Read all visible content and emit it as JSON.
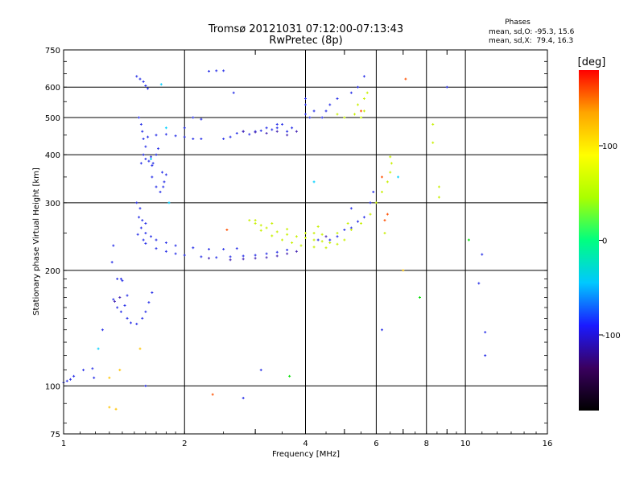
{
  "chart_data": {
    "type": "scatter",
    "title": "Tromsø 20121031 07:12:00-07:13:43",
    "subtitle": "RwPretec (8p)",
    "xlabel": "Frequency [MHz]",
    "ylabel": "Stationary phase Virtual Height [km]",
    "x_scale": "log",
    "y_scale": "log",
    "xlim": [
      1,
      16
    ],
    "ylim": [
      75,
      750
    ],
    "x_ticks": [
      1,
      2,
      4,
      6,
      8,
      10,
      16
    ],
    "x_minor_ticks": [
      3,
      5,
      7,
      9
    ],
    "y_ticks": [
      75,
      100,
      200,
      300,
      400,
      500,
      600,
      750
    ],
    "grid": true,
    "legend": {
      "header": "Phases",
      "lines": [
        "mean, sd,O: -95.3, 15.6",
        "mean, sd,X:  79.4, 16.3"
      ]
    },
    "colorbar": {
      "label": "[deg]",
      "range": [
        -180,
        180
      ],
      "ticks": [
        100,
        0,
        -100
      ],
      "colors": [
        "#000000",
        "#3a005f",
        "#1a1aff",
        "#00c8ff",
        "#00ff80",
        "#aaff00",
        "#ffff00",
        "#ffa500",
        "#ff0000"
      ]
    },
    "series": [
      {
        "color": "#2a32e8",
        "phase": -100,
        "points": [
          [
            1.0,
            102
          ],
          [
            1.02,
            103
          ],
          [
            1.04,
            104
          ],
          [
            1.06,
            106
          ],
          [
            1.12,
            110
          ],
          [
            1.19,
            105
          ],
          [
            1.33,
            232
          ],
          [
            1.32,
            210
          ],
          [
            1.36,
            190
          ],
          [
            1.39,
            190
          ],
          [
            1.4,
            188
          ],
          [
            1.33,
            168
          ],
          [
            1.36,
            160
          ],
          [
            1.39,
            156
          ],
          [
            1.42,
            162
          ],
          [
            1.44,
            172
          ],
          [
            1.44,
            150
          ],
          [
            1.47,
            146
          ],
          [
            1.52,
            145
          ],
          [
            1.57,
            150
          ],
          [
            1.6,
            156
          ],
          [
            1.63,
            165
          ],
          [
            1.66,
            175
          ],
          [
            1.52,
            640
          ],
          [
            1.55,
            630
          ],
          [
            1.58,
            620
          ],
          [
            1.6,
            605
          ],
          [
            1.62,
            595
          ],
          [
            1.54,
            500
          ],
          [
            1.56,
            480
          ],
          [
            1.57,
            460
          ],
          [
            1.58,
            440
          ],
          [
            1.6,
            420
          ],
          [
            1.58,
            400
          ],
          [
            1.56,
            380
          ],
          [
            1.6,
            390
          ],
          [
            1.63,
            385
          ],
          [
            1.66,
            375
          ],
          [
            1.65,
            395
          ],
          [
            1.67,
            380
          ],
          [
            1.7,
            400
          ],
          [
            1.72,
            415
          ],
          [
            1.66,
            350
          ],
          [
            1.7,
            330
          ],
          [
            1.74,
            320
          ],
          [
            1.77,
            330
          ],
          [
            1.8,
            355
          ],
          [
            1.78,
            340
          ],
          [
            1.76,
            360
          ],
          [
            1.52,
            300
          ],
          [
            1.55,
            290
          ],
          [
            1.54,
            275
          ],
          [
            1.57,
            270
          ],
          [
            1.6,
            265
          ],
          [
            1.56,
            258
          ],
          [
            1.53,
            248
          ],
          [
            1.58,
            240
          ],
          [
            1.6,
            235
          ],
          [
            1.7,
            228
          ],
          [
            1.8,
            224
          ],
          [
            1.9,
            221
          ],
          [
            2.0,
            219
          ],
          [
            2.2,
            217
          ],
          [
            2.4,
            216
          ],
          [
            2.6,
            217
          ],
          [
            2.8,
            218
          ],
          [
            3.0,
            219
          ],
          [
            3.2,
            221
          ],
          [
            3.4,
            223
          ],
          [
            3.6,
            226
          ],
          [
            1.7,
            240
          ],
          [
            1.8,
            236
          ],
          [
            1.9,
            232
          ],
          [
            2.1,
            229
          ],
          [
            2.3,
            227
          ],
          [
            2.5,
            227
          ],
          [
            2.7,
            228
          ],
          [
            1.6,
            250
          ],
          [
            1.65,
            245
          ],
          [
            1.62,
            445
          ],
          [
            1.7,
            450
          ],
          [
            1.8,
            452
          ],
          [
            1.9,
            448
          ],
          [
            2.0,
            445
          ],
          [
            2.1,
            440
          ],
          [
            2.2,
            440
          ],
          [
            2.0,
            470
          ],
          [
            2.1,
            500
          ],
          [
            2.2,
            495
          ],
          [
            2.5,
            440
          ],
          [
            2.6,
            445
          ],
          [
            2.7,
            455
          ],
          [
            2.8,
            460
          ],
          [
            2.9,
            452
          ],
          [
            3.0,
            460
          ],
          [
            3.1,
            462
          ],
          [
            3.2,
            470
          ],
          [
            3.3,
            465
          ],
          [
            3.4,
            470
          ],
          [
            3.5,
            480
          ],
          [
            3.6,
            460
          ],
          [
            3.7,
            470
          ],
          [
            3.4,
            480
          ],
          [
            4.0,
            510
          ],
          [
            4.1,
            500
          ],
          [
            4.2,
            520
          ],
          [
            4.4,
            500
          ],
          [
            4.5,
            520
          ],
          [
            4.6,
            540
          ],
          [
            4.8,
            560
          ],
          [
            4.0,
            560
          ],
          [
            4.0,
            540
          ],
          [
            5.2,
            580
          ],
          [
            5.4,
            600
          ],
          [
            5.6,
            640
          ],
          [
            4.6,
            240
          ],
          [
            4.8,
            245
          ],
          [
            5.0,
            255
          ],
          [
            5.2,
            258
          ],
          [
            5.4,
            268
          ],
          [
            5.6,
            275
          ],
          [
            5.8,
            300
          ],
          [
            5.9,
            320
          ],
          [
            5.2,
            290
          ],
          [
            4.3,
            240
          ],
          [
            2.3,
            660
          ],
          [
            2.4,
            662
          ],
          [
            2.5,
            662
          ],
          [
            2.65,
            580
          ],
          [
            1.25,
            140
          ],
          [
            1.6,
            100
          ],
          [
            1.18,
            111
          ],
          [
            2.8,
            93
          ],
          [
            3.1,
            110
          ],
          [
            6.2,
            140
          ],
          [
            11.0,
            220
          ],
          [
            11.2,
            138
          ],
          [
            10.8,
            185
          ],
          [
            11.2,
            120
          ],
          [
            9.0,
            600
          ]
        ]
      },
      {
        "color": "#4a2ab5",
        "phase": -115,
        "points": [
          [
            2.6,
            213
          ],
          [
            2.8,
            214
          ],
          [
            3.0,
            215
          ],
          [
            3.2,
            216
          ],
          [
            3.4,
            218
          ],
          [
            3.6,
            221
          ],
          [
            3.8,
            224
          ],
          [
            2.8,
            460
          ],
          [
            3.0,
            458
          ],
          [
            3.2,
            455
          ],
          [
            3.4,
            460
          ],
          [
            3.6,
            450
          ],
          [
            3.8,
            460
          ],
          [
            1.34,
            166
          ],
          [
            1.38,
            170
          ],
          [
            4.5,
            245
          ],
          [
            2.3,
            215
          ]
        ]
      },
      {
        "color": "#c8f000",
        "phase": 105,
        "points": [
          [
            2.9,
            270
          ],
          [
            3.0,
            265
          ],
          [
            3.1,
            262
          ],
          [
            3.2,
            258
          ],
          [
            3.4,
            252
          ],
          [
            3.6,
            248
          ],
          [
            3.8,
            245
          ],
          [
            4.0,
            243
          ],
          [
            4.2,
            240
          ],
          [
            4.4,
            238
          ],
          [
            4.6,
            236
          ],
          [
            4.8,
            234
          ],
          [
            3.1,
            254
          ],
          [
            3.3,
            246
          ],
          [
            3.5,
            240
          ],
          [
            3.7,
            236
          ],
          [
            3.9,
            232
          ],
          [
            4.2,
            230
          ],
          [
            4.5,
            229
          ],
          [
            3.0,
            270
          ],
          [
            3.3,
            265
          ],
          [
            3.6,
            256
          ],
          [
            4.0,
            250
          ],
          [
            4.4,
            248
          ],
          [
            4.8,
            250
          ],
          [
            5.2,
            255
          ],
          [
            5.5,
            265
          ],
          [
            5.8,
            280
          ],
          [
            6.0,
            300
          ],
          [
            6.2,
            320
          ],
          [
            6.4,
            340
          ],
          [
            6.5,
            360
          ],
          [
            6.55,
            380
          ],
          [
            6.5,
            395
          ],
          [
            5.5,
            500
          ],
          [
            5.6,
            520
          ],
          [
            5.4,
            540
          ],
          [
            5.3,
            510
          ],
          [
            5.7,
            580
          ],
          [
            5.6,
            560
          ],
          [
            5.0,
            500
          ],
          [
            4.8,
            510
          ],
          [
            4.2,
            250
          ],
          [
            4.3,
            260
          ],
          [
            5.0,
            240
          ],
          [
            5.1,
            265
          ],
          [
            6.3,
            250
          ],
          [
            8.3,
            480
          ],
          [
            8.3,
            430
          ],
          [
            8.6,
            330
          ],
          [
            8.6,
            310
          ]
        ]
      },
      {
        "color": "#ff5000",
        "phase": 160,
        "points": [
          [
            2.55,
            255
          ],
          [
            2.35,
            95
          ],
          [
            6.3,
            270
          ],
          [
            6.4,
            280
          ],
          [
            6.2,
            350
          ],
          [
            7.1,
            630
          ],
          [
            5.5,
            520
          ]
        ]
      },
      {
        "color": "#ffc400",
        "phase": 120,
        "points": [
          [
            1.3,
            88
          ],
          [
            1.35,
            87
          ],
          [
            1.38,
            110
          ],
          [
            1.3,
            105
          ],
          [
            1.55,
            125
          ],
          [
            7.0,
            200
          ]
        ]
      },
      {
        "color": "#00d0ff",
        "phase": 20,
        "points": [
          [
            4.2,
            340
          ],
          [
            1.65,
            390
          ],
          [
            1.83,
            300
          ],
          [
            1.75,
            610
          ],
          [
            1.8,
            470
          ],
          [
            1.22,
            125
          ],
          [
            6.8,
            350
          ]
        ]
      },
      {
        "color": "#00e000",
        "phase": 60,
        "points": [
          [
            3.65,
            106
          ],
          [
            7.7,
            170
          ],
          [
            10.2,
            240
          ]
        ]
      }
    ]
  }
}
